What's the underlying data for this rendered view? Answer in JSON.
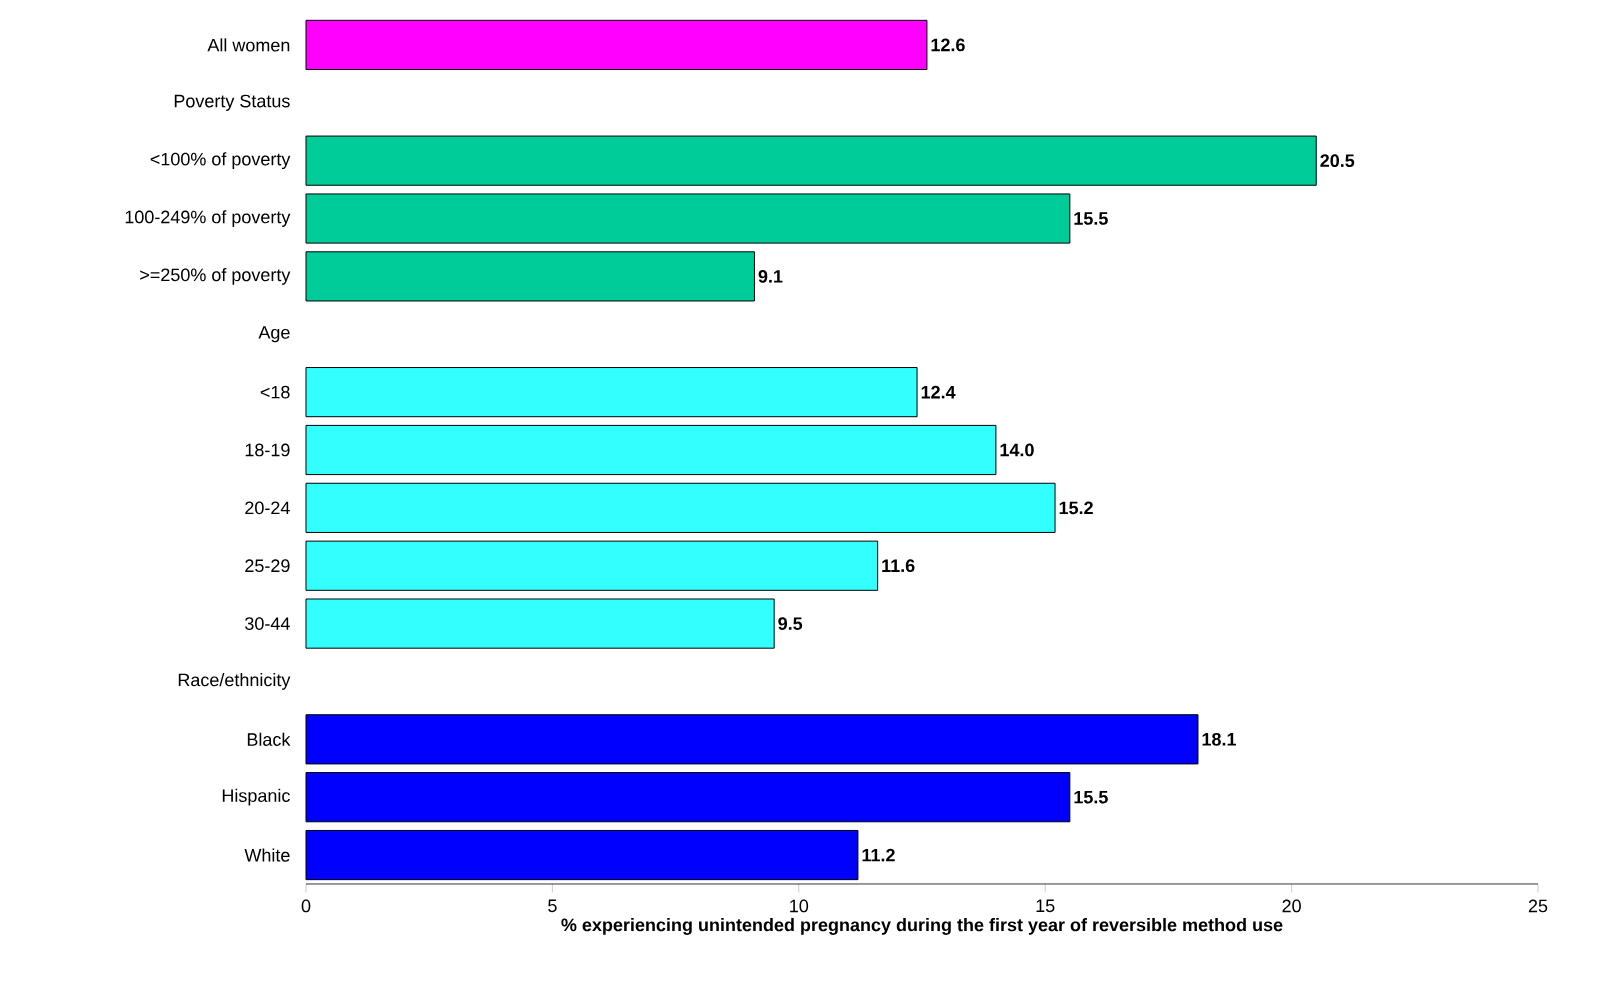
{
  "chart_data": {
    "type": "bar",
    "orientation": "horizontal",
    "xlabel": "% experiencing unintended pregnancy during the first year of reversible method use",
    "categories": [
      "All women",
      "Poverty Status",
      "<100% of poverty",
      "100-249% of poverty",
      ">=250% of poverty",
      "Age",
      "<18",
      "18-19",
      "20-24",
      "25-29",
      "30-44",
      "Race/ethnicity",
      "Black",
      "Hispanic",
      "White"
    ],
    "values": [
      12.6,
      null,
      20.5,
      15.5,
      9.1,
      null,
      12.4,
      14.0,
      15.2,
      11.6,
      9.5,
      null,
      18.1,
      15.5,
      11.2
    ],
    "colors": [
      "#ff00ff",
      null,
      "#00cc99",
      "#00cc99",
      "#00cc99",
      null,
      "#33ffff",
      "#33ffff",
      "#33ffff",
      "#33ffff",
      "#33ffff",
      null,
      "#0000ff",
      "#0000ff",
      "#0000ff"
    ],
    "value_labels": [
      "12.6",
      null,
      "20.5",
      "15.5",
      "9.1",
      null,
      "12.4",
      "14.0",
      "15.2",
      "11.6",
      "9.5",
      null,
      "18.1",
      "15.5",
      "11.2"
    ],
    "xlim": [
      0,
      25
    ],
    "xticks": [
      0,
      5,
      10,
      15,
      20,
      25
    ],
    "grid": false
  }
}
